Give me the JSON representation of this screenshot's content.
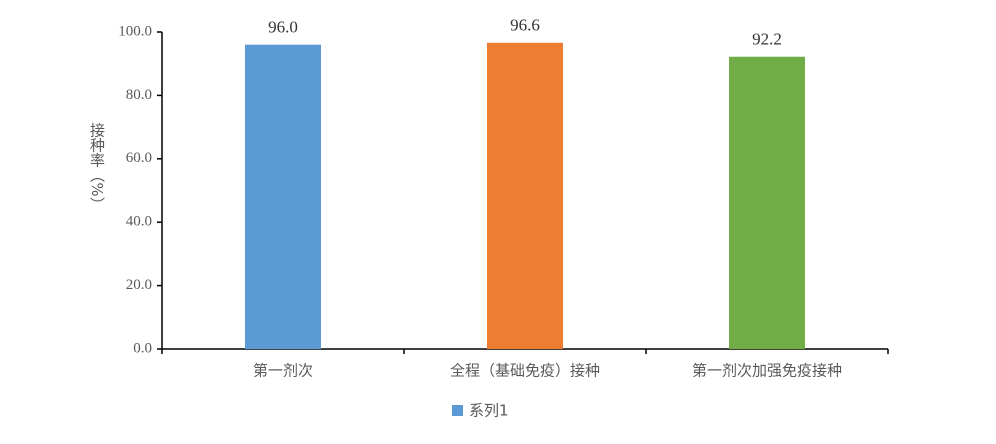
{
  "chart_data": {
    "type": "bar",
    "ylabel": "接种率（%）",
    "categories": [
      "第一剂次",
      "全程（基础免疫）接种",
      "第一剂次加强免疫接种"
    ],
    "series": [
      {
        "name": "系列1",
        "color": "#5b9bd5",
        "values": [
          96.0,
          96.6,
          92.2
        ],
        "value_labels": [
          "96.0",
          "96.6",
          "92.2"
        ]
      }
    ],
    "bar_colors": [
      "#5b9bd5",
      "#ed7d31",
      "#70ad47"
    ],
    "ylim": [
      0,
      100
    ],
    "yticks": [
      {
        "value": 0,
        "label": "0.0"
      },
      {
        "value": 20,
        "label": "20.0"
      },
      {
        "value": 40,
        "label": "40.0"
      },
      {
        "value": 60,
        "label": "60.0"
      },
      {
        "value": 80,
        "label": "80.0"
      },
      {
        "value": 100,
        "label": "100.0"
      }
    ],
    "grid": false,
    "legend": "bottom"
  }
}
